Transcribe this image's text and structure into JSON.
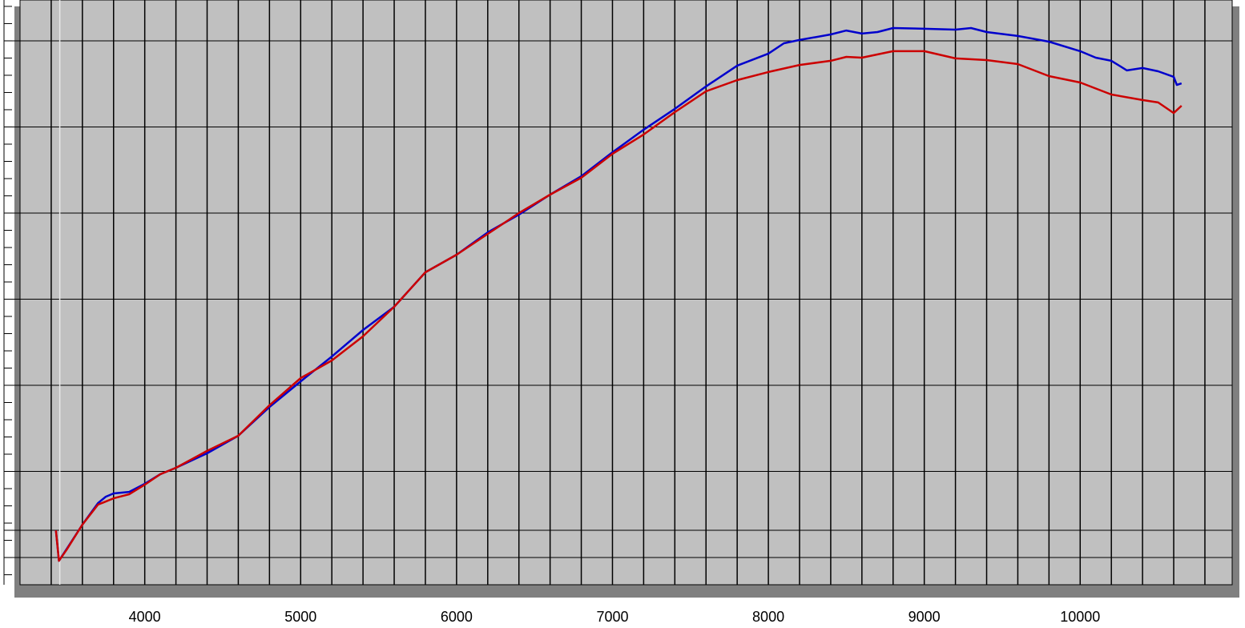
{
  "chart_data": {
    "type": "line",
    "xlim": [
      3200,
      10975
    ],
    "ylim": [
      3.42,
      37.37
    ],
    "xticks": [
      4000,
      5000,
      6000,
      7000,
      8000,
      9000,
      10000
    ],
    "xgrid": [
      3400,
      3600,
      3800,
      4000,
      4200,
      4400,
      4600,
      4800,
      5000,
      5200,
      5400,
      5600,
      5800,
      6000,
      6200,
      6400,
      6600,
      6800,
      7000,
      7200,
      7400,
      7600,
      7800,
      8000,
      8200,
      8400,
      8600,
      8800,
      9000,
      9200,
      9400,
      9600,
      9800,
      10000,
      10200,
      10400,
      10600,
      10800
    ],
    "ygrid": [
      5,
      10,
      15,
      20,
      25,
      30,
      35
    ],
    "yminor": [
      4,
      5,
      6,
      7,
      8,
      9,
      10,
      11,
      12,
      13,
      14,
      15,
      16,
      17,
      18,
      19,
      20,
      21,
      22,
      23,
      24,
      25,
      26,
      27,
      28,
      29,
      30,
      31,
      32,
      33,
      34,
      35,
      36,
      37
    ],
    "ref_line": 6.58,
    "cursor": 3455,
    "background": "#c0c0c0",
    "shadow": "#808080",
    "series": [
      {
        "color": "#0000cc",
        "x": [
          3430,
          3450,
          3500,
          3600,
          3700,
          3750,
          3800,
          3900,
          4000,
          4100,
          4200,
          4400,
          4600,
          4800,
          5000,
          5200,
          5400,
          5600,
          5800,
          6000,
          6200,
          6400,
          6600,
          6800,
          7000,
          7200,
          7400,
          7600,
          7800,
          8000,
          8100,
          8200,
          8400,
          8500,
          8600,
          8700,
          8800,
          9000,
          9200,
          9300,
          9400,
          9600,
          9800,
          10000,
          10100,
          10200,
          10300,
          10400,
          10500,
          10600,
          10620,
          10650
        ],
        "values": [
          6.58,
          4.81,
          5.51,
          6.91,
          8.16,
          8.53,
          8.72,
          8.81,
          9.28,
          9.84,
          10.21,
          11.05,
          12.07,
          13.74,
          15.23,
          16.67,
          18.21,
          19.56,
          21.56,
          22.58,
          23.88,
          24.91,
          26.07,
          27.14,
          28.53,
          29.84,
          31.05,
          32.35,
          33.56,
          34.26,
          34.86,
          35.05,
          35.37,
          35.6,
          35.42,
          35.51,
          35.74,
          35.7,
          35.65,
          35.74,
          35.51,
          35.28,
          34.95,
          34.4,
          34.02,
          33.84,
          33.28,
          33.42,
          33.23,
          32.91,
          32.44,
          32.53
        ]
      },
      {
        "color": "#cc0000",
        "x": [
          3430,
          3450,
          3500,
          3600,
          3700,
          3800,
          3900,
          4000,
          4100,
          4200,
          4400,
          4600,
          4800,
          5000,
          5200,
          5400,
          5600,
          5800,
          6000,
          6200,
          6400,
          6600,
          6800,
          7000,
          7200,
          7400,
          7600,
          7800,
          8000,
          8200,
          8400,
          8500,
          8600,
          8800,
          9000,
          9200,
          9400,
          9600,
          9800,
          10000,
          10200,
          10400,
          10500,
          10600,
          10650
        ],
        "values": [
          6.58,
          4.81,
          5.47,
          6.91,
          8.07,
          8.44,
          8.67,
          9.23,
          9.84,
          10.21,
          11.19,
          12.07,
          13.84,
          15.42,
          16.44,
          17.84,
          19.56,
          21.56,
          22.58,
          23.79,
          25.0,
          26.07,
          27.05,
          28.44,
          29.56,
          30.86,
          32.07,
          32.72,
          33.19,
          33.6,
          33.84,
          34.07,
          34.02,
          34.4,
          34.4,
          33.98,
          33.88,
          33.65,
          32.95,
          32.58,
          31.88,
          31.56,
          31.42,
          30.81,
          31.23
        ]
      }
    ]
  }
}
